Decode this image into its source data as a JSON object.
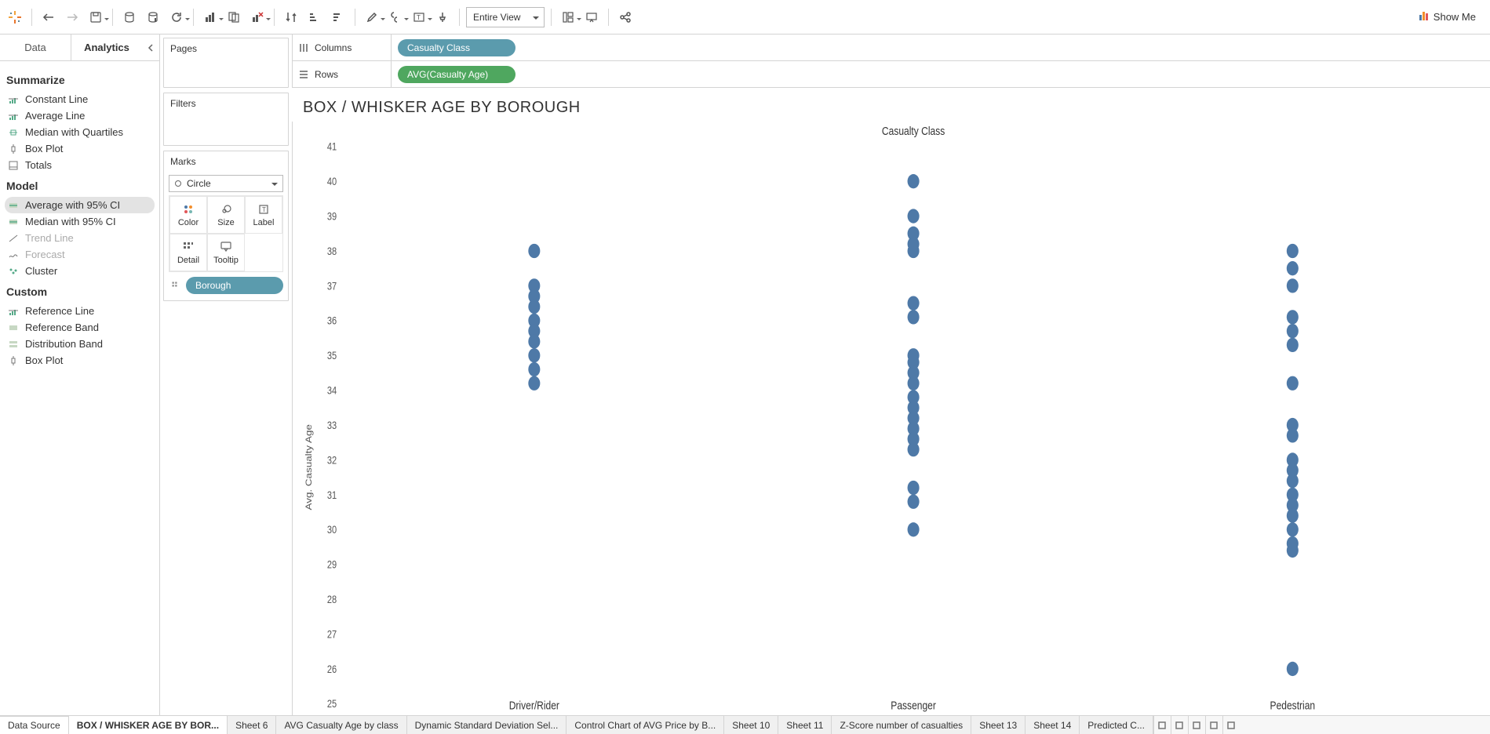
{
  "toolbar": {
    "fit_mode": "Entire View",
    "showme_label": "Show Me"
  },
  "left_pane": {
    "tabs": {
      "data": "Data",
      "analytics": "Analytics"
    },
    "groups": [
      {
        "title": "Summarize",
        "items": [
          {
            "icon": "ref-line",
            "label": "Constant Line",
            "enabled": true
          },
          {
            "icon": "ref-line",
            "label": "Average Line",
            "enabled": true
          },
          {
            "icon": "quartile",
            "label": "Median with Quartiles",
            "enabled": true
          },
          {
            "icon": "box",
            "label": "Box Plot",
            "enabled": true
          },
          {
            "icon": "totals",
            "label": "Totals",
            "enabled": true
          }
        ]
      },
      {
        "title": "Model",
        "items": [
          {
            "icon": "ci",
            "label": "Average with 95% CI",
            "enabled": true,
            "hover": true
          },
          {
            "icon": "ci",
            "label": "Median with 95% CI",
            "enabled": true
          },
          {
            "icon": "trend",
            "label": "Trend Line",
            "enabled": false
          },
          {
            "icon": "forecast",
            "label": "Forecast",
            "enabled": false
          },
          {
            "icon": "cluster",
            "label": "Cluster",
            "enabled": true
          }
        ]
      },
      {
        "title": "Custom",
        "items": [
          {
            "icon": "ref-line",
            "label": "Reference Line",
            "enabled": true
          },
          {
            "icon": "band",
            "label": "Reference Band",
            "enabled": true
          },
          {
            "icon": "dist",
            "label": "Distribution Band",
            "enabled": true
          },
          {
            "icon": "box",
            "label": "Box Plot",
            "enabled": true
          }
        ]
      }
    ]
  },
  "cards": {
    "pages": "Pages",
    "filters": "Filters",
    "marks_title": "Marks",
    "mark_type": "Circle",
    "cells": [
      {
        "k": "color",
        "label": "Color"
      },
      {
        "k": "size",
        "label": "Size"
      },
      {
        "k": "label",
        "label": "Label"
      },
      {
        "k": "detail",
        "label": "Detail"
      },
      {
        "k": "tooltip",
        "label": "Tooltip"
      }
    ],
    "detail_pill": "Borough"
  },
  "shelves": {
    "columns_label": "Columns",
    "rows_label": "Rows",
    "columns_pill": "Casualty Class",
    "rows_pill": "AVG(Casualty Age)"
  },
  "viz": {
    "title": "BOX / WHISKER AGE BY BOROUGH",
    "column_header": "Casualty Class",
    "y_axis_title": "Avg. Casualty Age",
    "y_ticks": [
      41,
      40,
      39,
      38,
      37,
      36,
      35,
      34,
      33,
      32,
      31,
      30,
      29,
      28,
      27,
      26,
      25
    ],
    "y_min": 25,
    "y_max": 41,
    "dot_radius": 7.5,
    "dot_color": "#4e79a7",
    "categories": [
      {
        "name": "Driver/Rider",
        "values": [
          38.0,
          37.0,
          36.7,
          36.4,
          36.0,
          35.7,
          35.4,
          35.0,
          34.6,
          34.2
        ]
      },
      {
        "name": "Passenger",
        "values": [
          40.0,
          39.0,
          38.5,
          38.2,
          38.0,
          36.5,
          36.1,
          35.0,
          34.8,
          34.5,
          34.2,
          33.8,
          33.5,
          33.2,
          32.9,
          32.6,
          32.3,
          31.2,
          30.8,
          30.0
        ]
      },
      {
        "name": "Pedestrian",
        "values": [
          38.0,
          37.5,
          37.0,
          36.1,
          35.7,
          35.3,
          34.2,
          33.0,
          32.7,
          32.0,
          31.7,
          31.4,
          31.0,
          30.7,
          30.4,
          30.0,
          29.6,
          29.4,
          26.0
        ]
      }
    ]
  },
  "sheet_tabs": [
    {
      "label": "Data Source",
      "kind": "src"
    },
    {
      "label": "BOX / WHISKER AGE BY BOR...",
      "kind": "active"
    },
    {
      "label": "Sheet 6"
    },
    {
      "label": "AVG Casualty Age by class"
    },
    {
      "label": "Dynamic Standard Deviation Sel..."
    },
    {
      "label": "Control Chart of AVG Price by B..."
    },
    {
      "label": "Sheet 10"
    },
    {
      "label": "Sheet 11"
    },
    {
      "label": "Z-Score number of casualties"
    },
    {
      "label": "Sheet 13"
    },
    {
      "label": "Sheet 14"
    },
    {
      "label": "Predicted C..."
    }
  ]
}
